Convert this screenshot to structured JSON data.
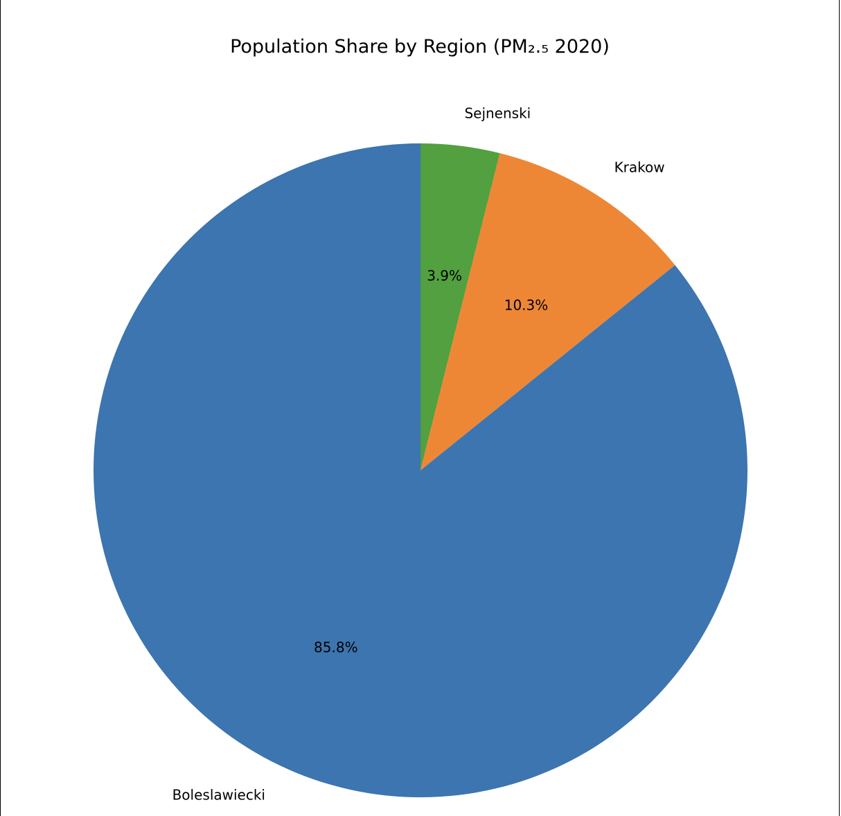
{
  "chart_data": {
    "type": "pie",
    "title": "Population Share by Region (PM₂.₅ 2020)",
    "start_angle_deg": 90,
    "direction": "clockwise",
    "slices": [
      {
        "label": "Sejnenski",
        "value": 3.9,
        "pct_label": "3.9%",
        "color": "#52a03f"
      },
      {
        "label": "Krakow",
        "value": 10.3,
        "pct_label": "10.3%",
        "color": "#ee8735"
      },
      {
        "label": "Boleslawiecki",
        "value": 85.8,
        "pct_label": "85.8%",
        "color": "#3c75af"
      }
    ]
  }
}
